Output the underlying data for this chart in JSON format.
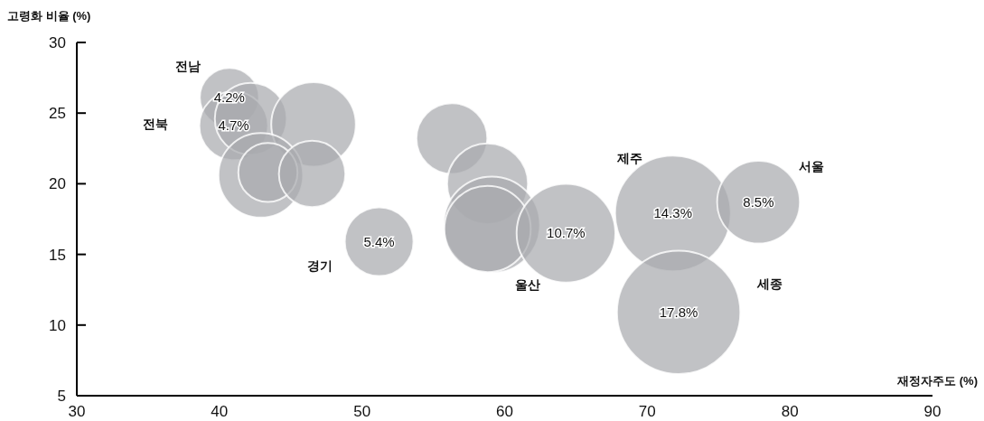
{
  "chart_data": {
    "type": "bubble",
    "xlabel": "재정자주도 (%)",
    "ylabel": "고령화 비율 (%)",
    "xlim": [
      30,
      90
    ],
    "xticks": [
      30,
      40,
      50,
      60,
      70,
      80,
      90
    ],
    "ylim": [
      5,
      30
    ],
    "yticks": [
      5,
      10,
      15,
      20,
      25,
      30
    ],
    "series": [
      {
        "color": "#a9aaae",
        "x": [
          40.7,
          41.0,
          42.2,
          46.6,
          42.9,
          43.4,
          46.5,
          56.3,
          58.8,
          59.1,
          58.8,
          64.3,
          51.2,
          71.8,
          77.8,
          72.2
        ],
        "values": [
          26.1,
          24.1,
          24.6,
          24.2,
          20.6,
          20.8,
          20.7,
          23.2,
          20.0,
          17.1,
          16.8,
          16.5,
          15.9,
          17.9,
          18.7,
          10.9
        ],
        "sizes": [
          0.23,
          0.31,
          0.34,
          0.47,
          0.47,
          0.23,
          0.29,
          0.33,
          0.43,
          0.61,
          0.49,
          0.64,
          0.31,
          0.88,
          0.45,
          1
        ]
      }
    ],
    "annotations": [
      {
        "text": "4.2%",
        "x": 40.7,
        "y": 26.1
      },
      {
        "text": "4.7%",
        "x": 41.0,
        "y": 24.1
      },
      {
        "text": "10.7%",
        "x": 64.3,
        "y": 16.5
      },
      {
        "text": "5.4%",
        "x": 51.2,
        "y": 15.9
      },
      {
        "text": "14.3%",
        "x": 71.8,
        "y": 17.9
      },
      {
        "text": "8.5%",
        "x": 77.8,
        "y": 18.7
      },
      {
        "text": "17.8%",
        "x": 72.2,
        "y": 10.9
      },
      "전남",
      "전북",
      "경기",
      "울산",
      "제주",
      "서울",
      "세종"
    ]
  }
}
